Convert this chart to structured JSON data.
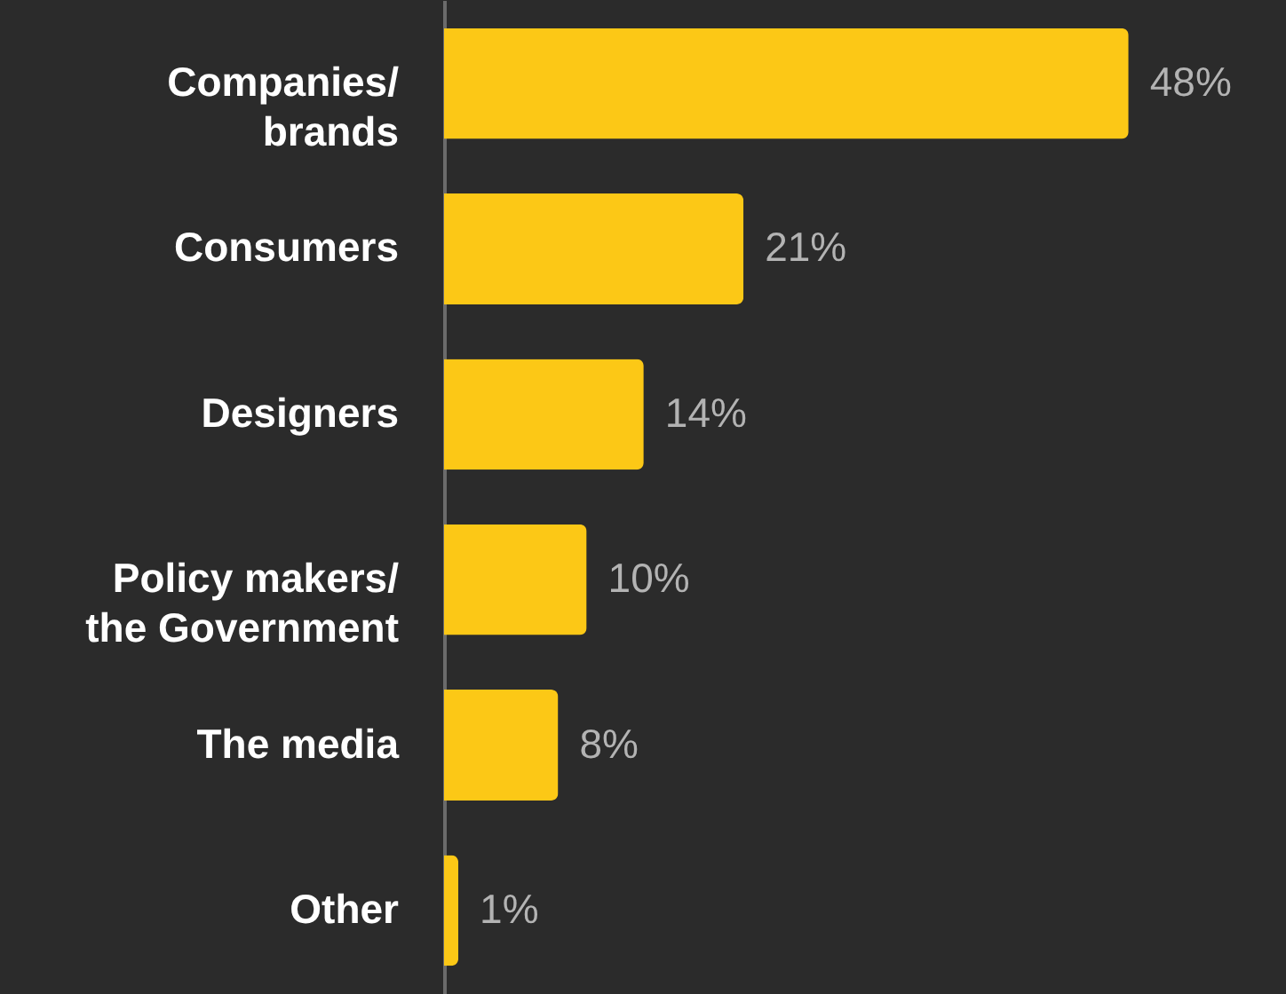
{
  "chart_data": {
    "type": "bar",
    "orientation": "horizontal",
    "categories": [
      "Companies/ brands",
      "Consumers",
      "Designers",
      "Policy makers/ the Government",
      "The media",
      "Other"
    ],
    "values": [
      48,
      21,
      14,
      10,
      8,
      1
    ],
    "value_labels": [
      "48%",
      "21%",
      "14%",
      "10%",
      "8%",
      "1%"
    ],
    "color": "#fcc816"
  }
}
